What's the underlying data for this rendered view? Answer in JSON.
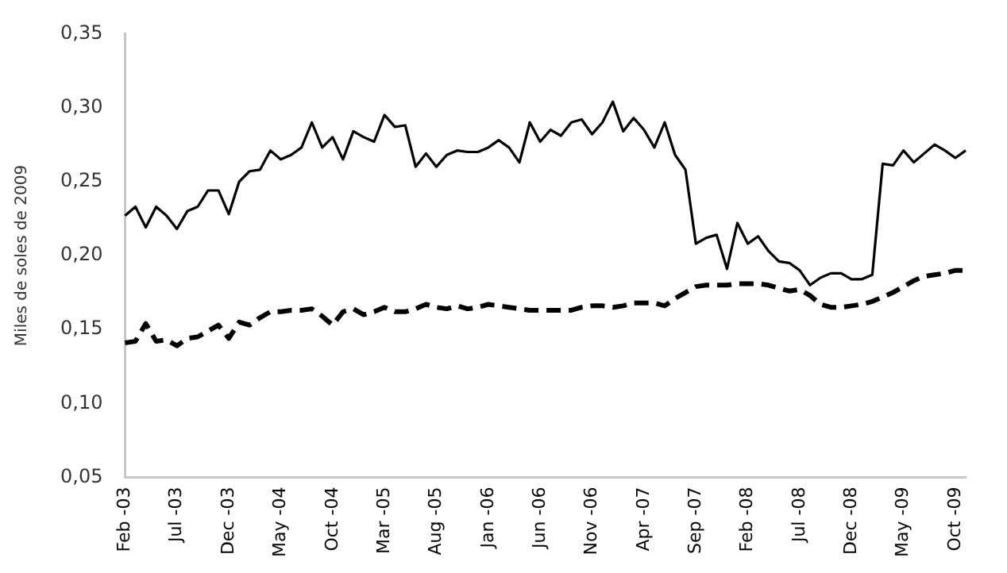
{
  "chart_data": {
    "type": "line",
    "ylabel": "Miles de soles de 2009",
    "categories": [
      "Feb -03",
      null,
      null,
      null,
      null,
      "Jul -03",
      null,
      null,
      null,
      null,
      "Dec -03",
      null,
      null,
      null,
      null,
      "May -04",
      null,
      null,
      null,
      null,
      "Oct -04",
      null,
      null,
      null,
      null,
      "Mar -05",
      null,
      null,
      null,
      null,
      "Aug -05",
      null,
      null,
      null,
      null,
      "Jan -06",
      null,
      null,
      null,
      null,
      "Jun -06",
      null,
      null,
      null,
      null,
      "Nov -06",
      null,
      null,
      null,
      null,
      "Apr -07",
      null,
      null,
      null,
      null,
      "Sep -07",
      null,
      null,
      null,
      null,
      "Feb -08",
      null,
      null,
      null,
      null,
      "Jul -08",
      null,
      null,
      null,
      null,
      "Dec -08",
      null,
      null,
      null,
      null,
      "May -09",
      null,
      null,
      null,
      null,
      "Oct -09",
      null
    ],
    "series": [
      {
        "color": "#000000",
        "line_style": "solid",
        "values": [
          0.227,
          0.233,
          0.219,
          0.233,
          0.227,
          0.218,
          0.23,
          0.233,
          0.244,
          0.244,
          0.228,
          0.25,
          0.257,
          0.258,
          0.271,
          0.265,
          0.268,
          0.273,
          0.29,
          0.273,
          0.28,
          0.265,
          0.284,
          0.28,
          0.277,
          0.295,
          0.287,
          0.288,
          0.26,
          0.269,
          0.26,
          0.268,
          0.271,
          0.27,
          0.27,
          0.273,
          0.278,
          0.273,
          0.263,
          0.29,
          0.277,
          0.285,
          0.281,
          0.29,
          0.292,
          0.282,
          0.29,
          0.304,
          0.284,
          0.293,
          0.285,
          0.273,
          0.29,
          0.268,
          0.258,
          0.208,
          0.212,
          0.214,
          0.191,
          0.222,
          0.208,
          0.213,
          0.203,
          0.196,
          0.195,
          0.19,
          0.18,
          0.185,
          0.188,
          0.188,
          0.184,
          0.184,
          0.187,
          0.262,
          0.261,
          0.271,
          0.263,
          0.269,
          0.275,
          0.271,
          0.266,
          0.271
        ]
      },
      {
        "color": "#000000",
        "line_style": "dashed",
        "values": [
          0.141,
          0.142,
          0.154,
          0.142,
          0.143,
          0.139,
          0.144,
          0.145,
          0.149,
          0.153,
          0.144,
          0.155,
          0.153,
          0.158,
          0.162,
          0.162,
          0.163,
          0.163,
          0.164,
          0.159,
          0.153,
          0.162,
          0.164,
          0.16,
          0.162,
          0.165,
          0.162,
          0.162,
          0.164,
          0.167,
          0.165,
          0.164,
          0.166,
          0.164,
          0.165,
          0.167,
          0.166,
          0.165,
          0.164,
          0.163,
          0.163,
          0.163,
          0.163,
          0.163,
          0.165,
          0.166,
          0.166,
          0.165,
          0.166,
          0.168,
          0.168,
          0.168,
          0.166,
          0.171,
          0.175,
          0.179,
          0.18,
          0.18,
          0.18,
          0.181,
          0.181,
          0.181,
          0.18,
          0.178,
          0.176,
          0.177,
          0.173,
          0.167,
          0.165,
          0.165,
          0.166,
          0.167,
          0.169,
          0.172,
          0.175,
          0.179,
          0.183,
          0.186,
          0.187,
          0.188,
          0.19,
          0.19
        ]
      }
    ],
    "ylim": [
      0.05,
      0.35
    ],
    "yticks": [
      {
        "value": 0.05,
        "label": "0,05"
      },
      {
        "value": 0.1,
        "label": "0,10"
      },
      {
        "value": 0.15,
        "label": "0,15"
      },
      {
        "value": 0.2,
        "label": "0,20"
      },
      {
        "value": 0.25,
        "label": "0,25"
      },
      {
        "value": 0.3,
        "label": "0,30"
      },
      {
        "value": 0.35,
        "label": "0,35"
      }
    ],
    "grid": false,
    "legend": false
  }
}
